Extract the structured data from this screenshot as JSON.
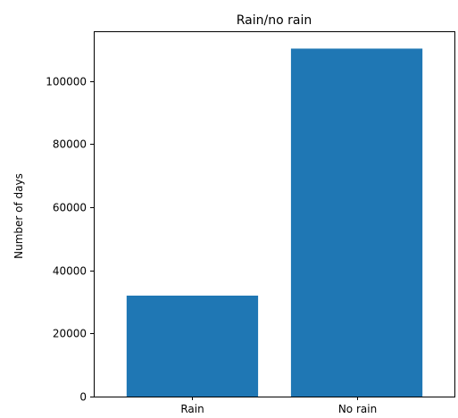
{
  "chart_data": {
    "type": "bar",
    "title": "Rain/no rain",
    "xlabel": "",
    "ylabel": "Number of days",
    "categories": [
      "Rain",
      "No rain"
    ],
    "values": [
      32000,
      110300
    ],
    "ylim": [
      0,
      115800
    ],
    "yticks": [
      0,
      20000,
      40000,
      60000,
      80000,
      100000
    ],
    "grid": false,
    "colors": {
      "bar": "#1f77b4",
      "axis": "#000000",
      "background": "#ffffff"
    }
  }
}
